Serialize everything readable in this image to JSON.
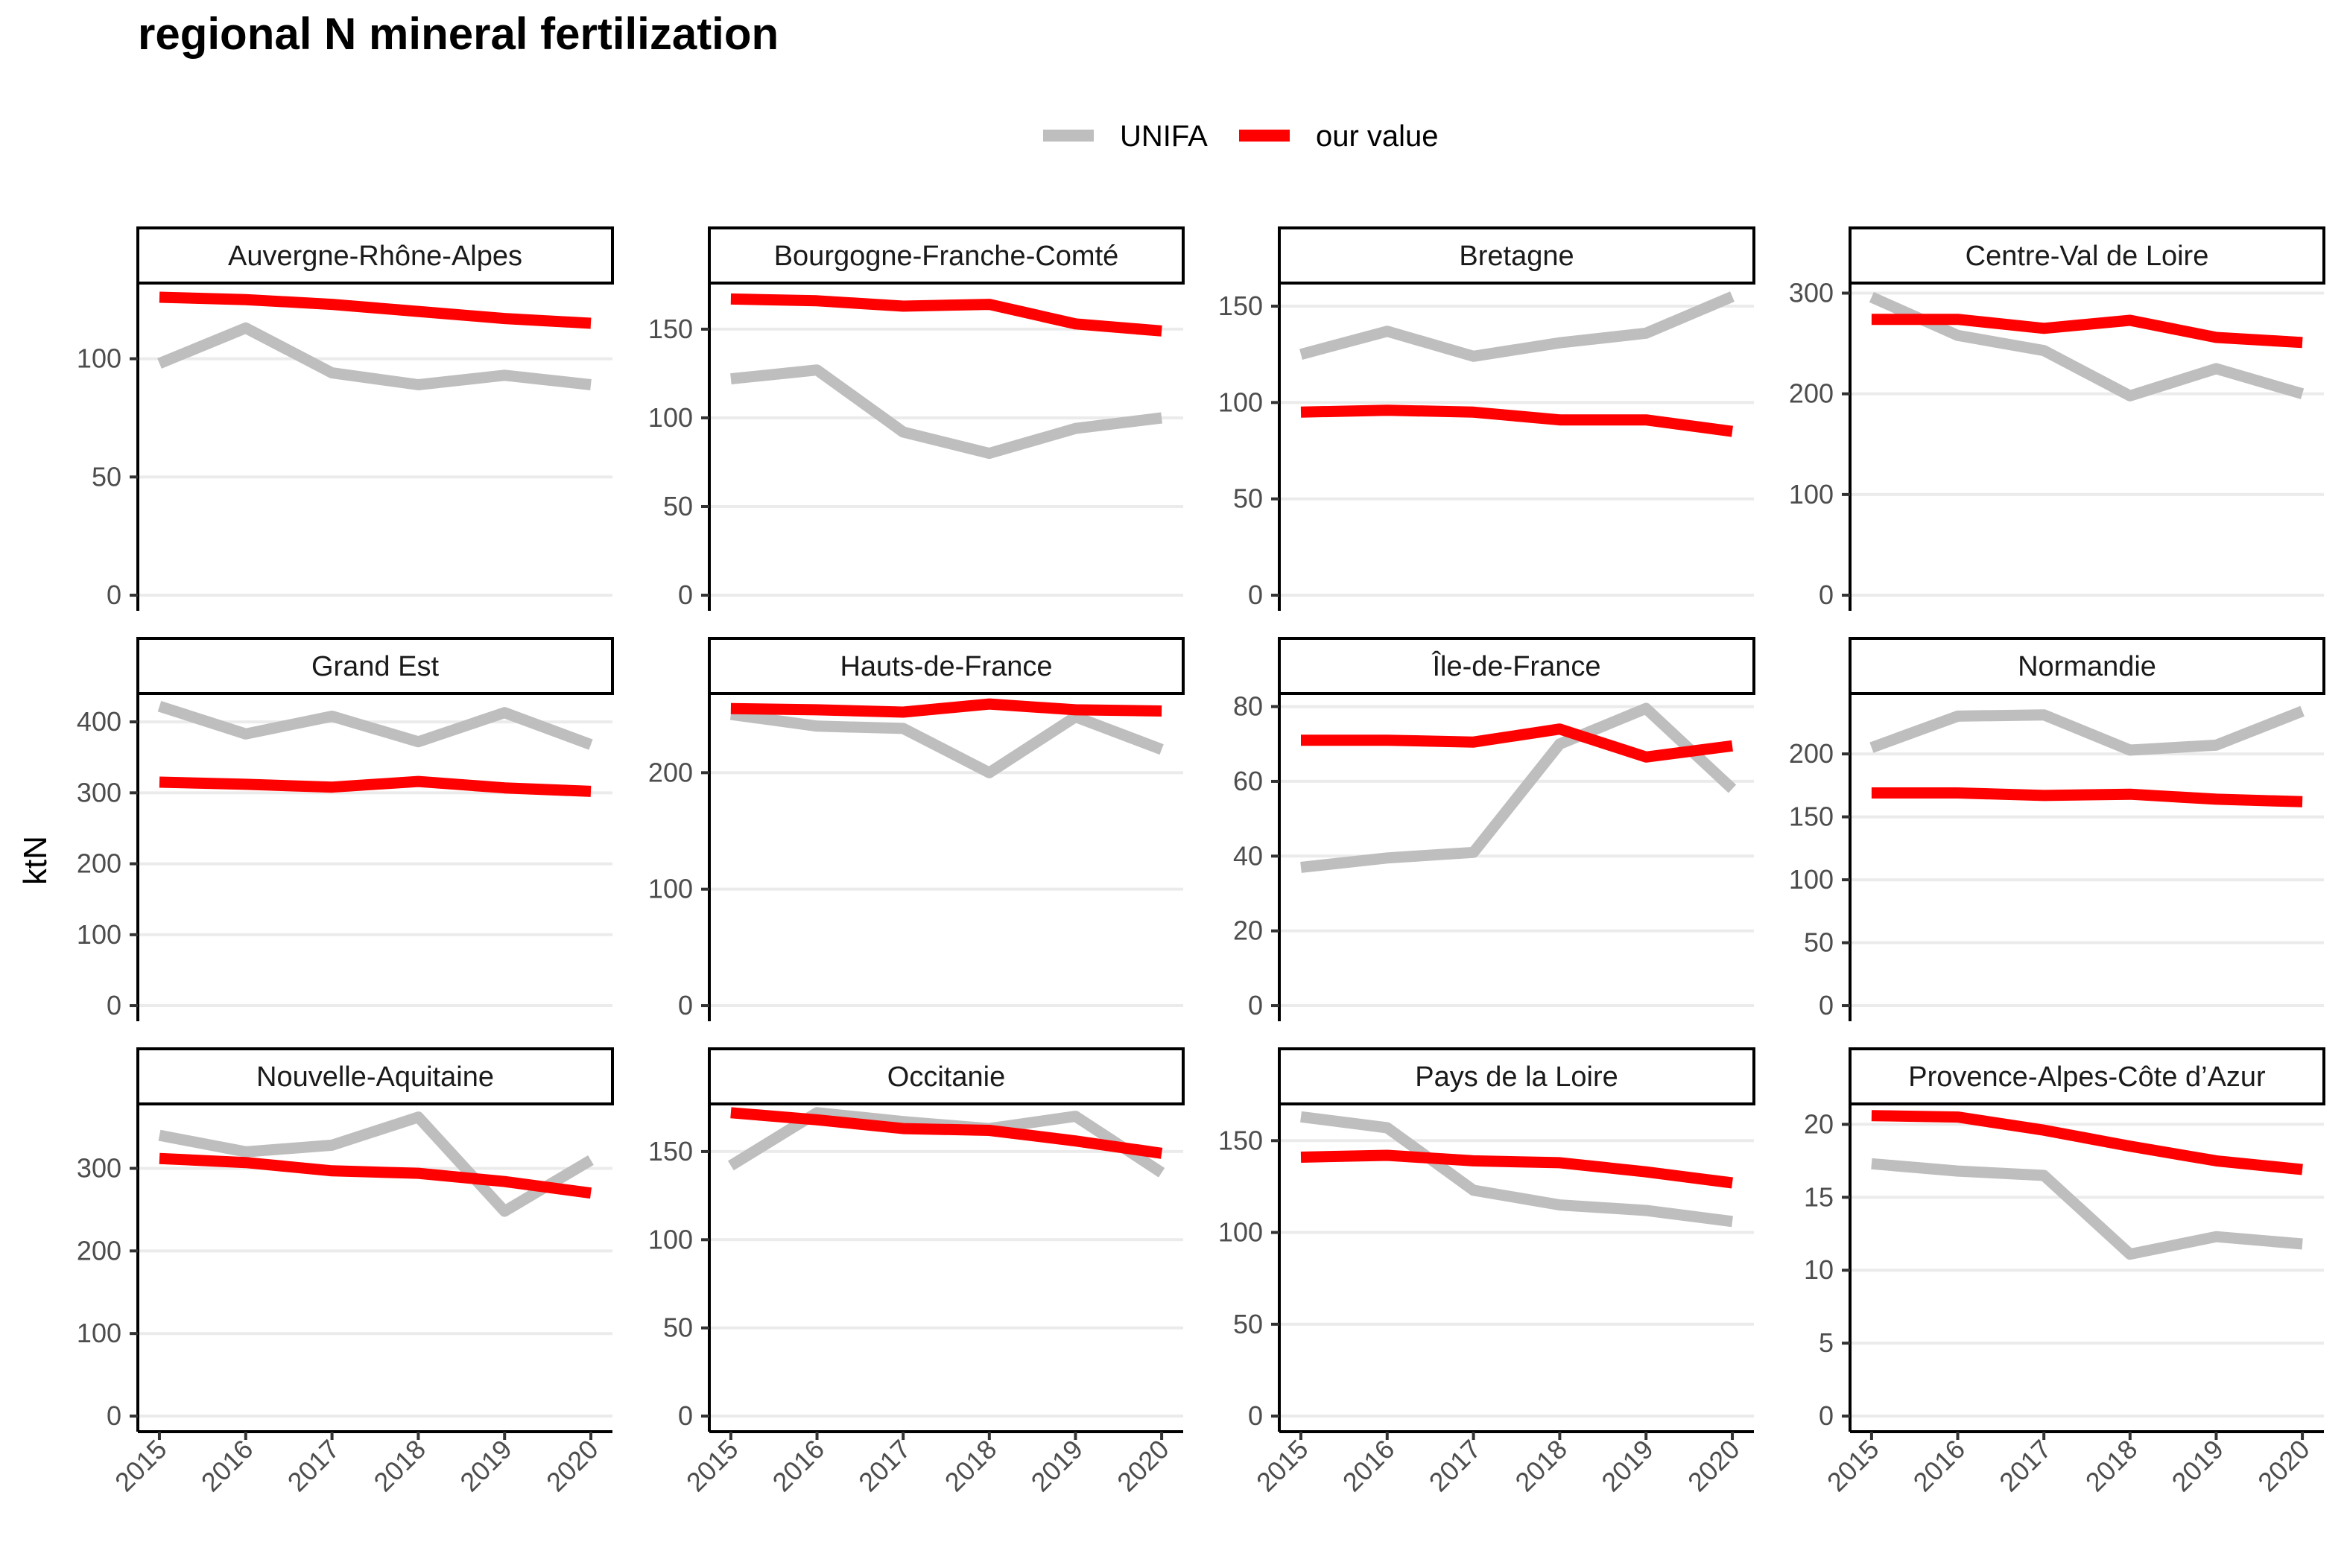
{
  "chart_data": {
    "type": "line",
    "title": "regional N mineral fertilization",
    "ylabel": "ktN",
    "xlabel": "",
    "x": [
      2015,
      2016,
      2017,
      2018,
      2019,
      2020
    ],
    "legend_position": "top",
    "grid": "horizontal major",
    "series_meta": [
      {
        "name": "UNIFA",
        "color": "#bebebe"
      },
      {
        "name": "our value",
        "color": "#ff0000"
      }
    ],
    "panels": [
      {
        "region": "Auvergne-Rhône-Alpes",
        "yticks": [
          0,
          50,
          100
        ],
        "ylim": [
          0,
          132
        ],
        "series": [
          {
            "name": "UNIFA",
            "values": [
              98,
              113,
              94,
              89,
              93,
              89
            ]
          },
          {
            "name": "our value",
            "values": [
              126,
              125,
              123,
              120,
              117,
              115
            ]
          }
        ]
      },
      {
        "region": "Bourgogne-Franche-Comté",
        "yticks": [
          0,
          50,
          100,
          150
        ],
        "ylim": [
          0,
          176
        ],
        "series": [
          {
            "name": "UNIFA",
            "values": [
              122,
              127,
              92,
              80,
              94,
              100
            ]
          },
          {
            "name": "our value",
            "values": [
              167,
              166,
              163,
              164,
              153,
              149
            ]
          }
        ]
      },
      {
        "region": "Bretagne",
        "yticks": [
          0,
          50,
          100,
          150
        ],
        "ylim": [
          0,
          162
        ],
        "series": [
          {
            "name": "UNIFA",
            "values": [
              125,
              137,
              124,
              131,
              136,
              155
            ]
          },
          {
            "name": "our value",
            "values": [
              95,
              96,
              95,
              91,
              91,
              85
            ]
          }
        ]
      },
      {
        "region": "Centre-Val de Loire",
        "yticks": [
          0,
          100,
          200,
          300
        ],
        "ylim": [
          0,
          310
        ],
        "series": [
          {
            "name": "UNIFA",
            "values": [
              296,
              258,
              243,
              198,
              225,
              200
            ]
          },
          {
            "name": "our value",
            "values": [
              274,
              274,
              265,
              273,
              256,
              251
            ]
          }
        ]
      },
      {
        "region": "Grand Est",
        "yticks": [
          0,
          100,
          200,
          300,
          400
        ],
        "ylim": [
          0,
          440
        ],
        "series": [
          {
            "name": "UNIFA",
            "values": [
              422,
              383,
              408,
              372,
              413,
              368
            ]
          },
          {
            "name": "our value",
            "values": [
              315,
              312,
              308,
              316,
              307,
              302
            ]
          }
        ]
      },
      {
        "region": "Hauts-de-France",
        "yticks": [
          0,
          100,
          200
        ],
        "ylim": [
          0,
          268
        ],
        "series": [
          {
            "name": "UNIFA",
            "values": [
              250,
              240,
              238,
              200,
              248,
              220
            ]
          },
          {
            "name": "our value",
            "values": [
              255,
              254,
              252,
              259,
              254,
              253
            ]
          }
        ]
      },
      {
        "region": "Île-de-France",
        "yticks": [
          0,
          20,
          40,
          60,
          80
        ],
        "ylim": [
          0,
          83.5
        ],
        "series": [
          {
            "name": "UNIFA",
            "values": [
              37,
              39.5,
              41,
              70,
              79.5,
              58
            ]
          },
          {
            "name": "our value",
            "values": [
              71,
              71,
              70.5,
              74,
              66.5,
              69.5
            ]
          }
        ]
      },
      {
        "region": "Normandie",
        "yticks": [
          0,
          50,
          100,
          150,
          200
        ],
        "ylim": [
          0,
          248
        ],
        "series": [
          {
            "name": "UNIFA",
            "values": [
              205,
              230,
              231,
              203,
              207,
              234
            ]
          },
          {
            "name": "our value",
            "values": [
              169,
              169,
              167,
              168,
              164,
              162
            ]
          }
        ]
      },
      {
        "region": "Nouvelle-Aquitaine",
        "yticks": [
          0,
          100,
          200,
          300
        ],
        "ylim": [
          0,
          378
        ],
        "series": [
          {
            "name": "UNIFA",
            "values": [
              340,
              320,
              328,
              362,
              248,
              310
            ]
          },
          {
            "name": "our value",
            "values": [
              312,
              307,
              297,
              294,
              284,
              270
            ]
          }
        ]
      },
      {
        "region": "Occitanie",
        "yticks": [
          0,
          50,
          100,
          150
        ],
        "ylim": [
          0,
          177
        ],
        "series": [
          {
            "name": "UNIFA",
            "values": [
              142,
              172,
              167,
              163,
              170,
              138
            ]
          },
          {
            "name": "our value",
            "values": [
              172,
              168,
              163,
              162,
              156,
              149
            ]
          }
        ]
      },
      {
        "region": "Pays de la Loire",
        "yticks": [
          0,
          50,
          100,
          150
        ],
        "ylim": [
          0,
          170
        ],
        "series": [
          {
            "name": "UNIFA",
            "values": [
              163,
              157,
              123,
              115,
              112,
              106
            ]
          },
          {
            "name": "our value",
            "values": [
              141,
              142,
              139,
              138,
              133,
              127
            ]
          }
        ]
      },
      {
        "region": "Provence-Alpes-Côte d’Azur",
        "yticks": [
          0,
          5,
          10,
          15,
          20
        ],
        "ylim": [
          0,
          21.4
        ],
        "series": [
          {
            "name": "UNIFA",
            "values": [
              17.3,
              16.8,
              16.5,
              11.1,
              12.3,
              11.8
            ]
          },
          {
            "name": "our value",
            "values": [
              20.6,
              20.5,
              19.6,
              18.5,
              17.5,
              16.9
            ]
          }
        ]
      }
    ]
  }
}
